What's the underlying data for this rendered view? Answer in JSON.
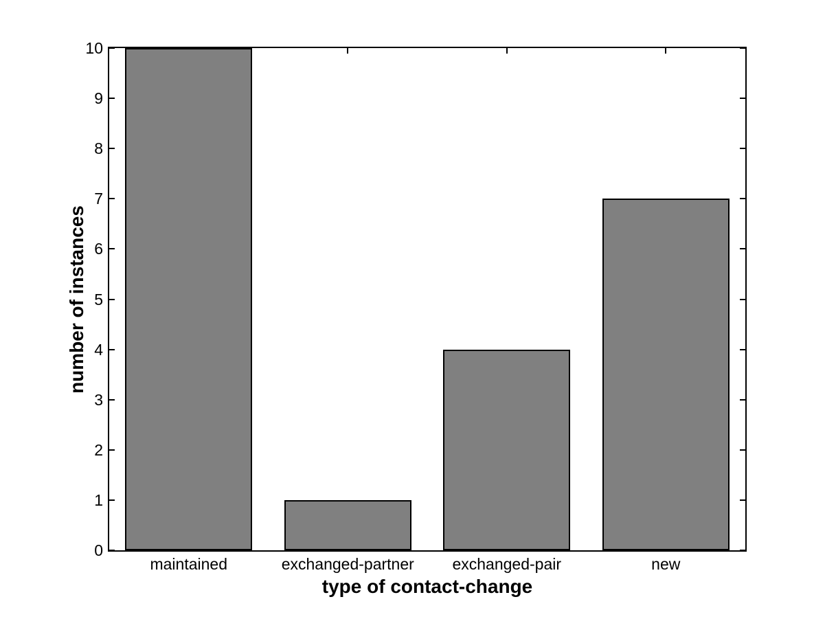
{
  "chart_data": {
    "type": "bar",
    "title": "",
    "categories": [
      "maintained",
      "exchanged-partner",
      "exchanged-pair",
      "new"
    ],
    "values": [
      10,
      1,
      4,
      7
    ],
    "xlabel": "type of contact-change",
    "ylabel": "number of instances",
    "ylim": [
      0,
      10
    ],
    "yticks": [
      0,
      1,
      2,
      3,
      4,
      5,
      6,
      7,
      8,
      9,
      10
    ],
    "bar_width_fraction": 0.8,
    "grid": false,
    "legend": "none",
    "colors": {
      "bar_fill": "#808080",
      "bar_edge": "#000000",
      "axis": "#000000",
      "text": "#000000",
      "background": "#ffffff"
    }
  }
}
